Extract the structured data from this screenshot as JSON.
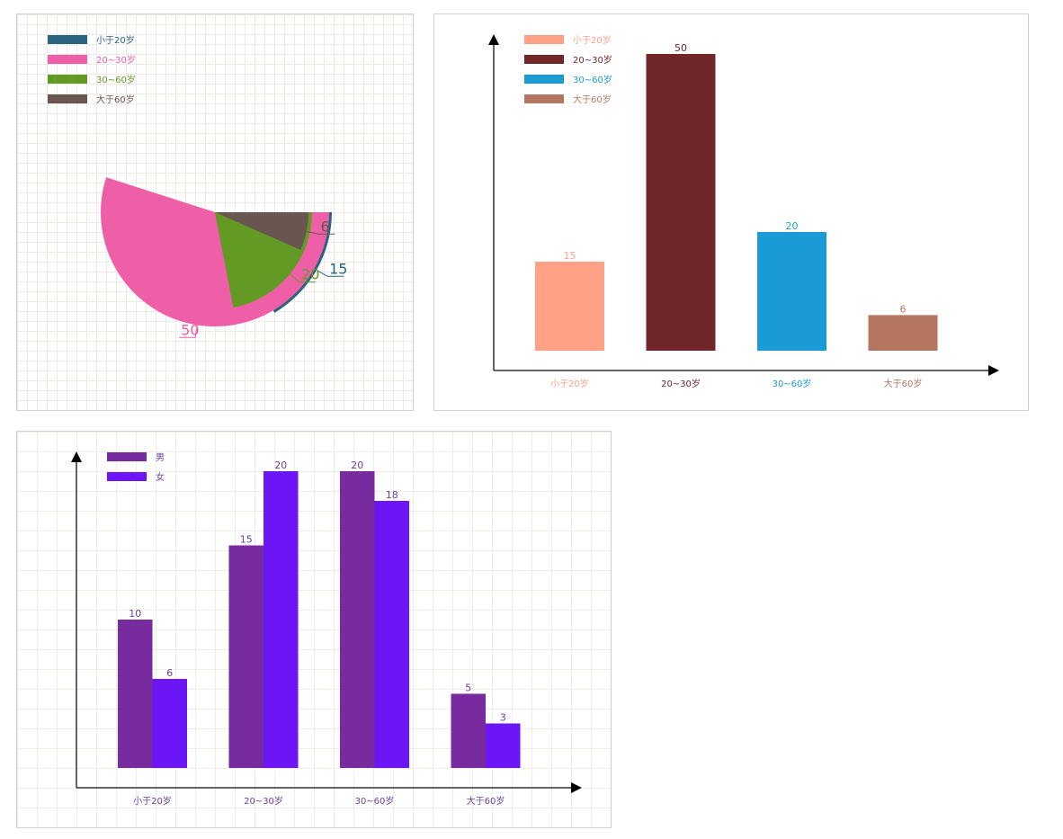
{
  "chart_data": [
    {
      "type": "pie",
      "categories": [
        "小于20岁",
        "20~30岁",
        "30~60岁",
        "大于60岁"
      ],
      "values": [
        15,
        50,
        20,
        6
      ],
      "colors": [
        "#2a6480",
        "#ef5fa7",
        "#629a23",
        "#6a5651"
      ],
      "legend": "top-left",
      "grid": true
    },
    {
      "type": "bar",
      "categories": [
        "小于20岁",
        "20~30岁",
        "30~60岁",
        "大于60岁"
      ],
      "values": [
        15,
        50,
        20,
        6
      ],
      "colors": [
        "#fea186",
        "#71272a",
        "#1a9bd6",
        "#b47660"
      ],
      "ylim": [
        0,
        53
      ],
      "legend": "top-left",
      "grid": false
    },
    {
      "type": "bar",
      "categories": [
        "小于20岁",
        "20~30岁",
        "30~60岁",
        "大于60岁"
      ],
      "series": [
        {
          "name": "男",
          "values": [
            10,
            15,
            20,
            5
          ],
          "color": "#772b9f"
        },
        {
          "name": "女",
          "values": [
            6,
            20,
            18,
            3
          ],
          "color": "#6c16f5"
        }
      ],
      "ylim": [
        0,
        20
      ],
      "label_color": "#6b3fa0",
      "legend": "top-left",
      "grid": true
    }
  ]
}
